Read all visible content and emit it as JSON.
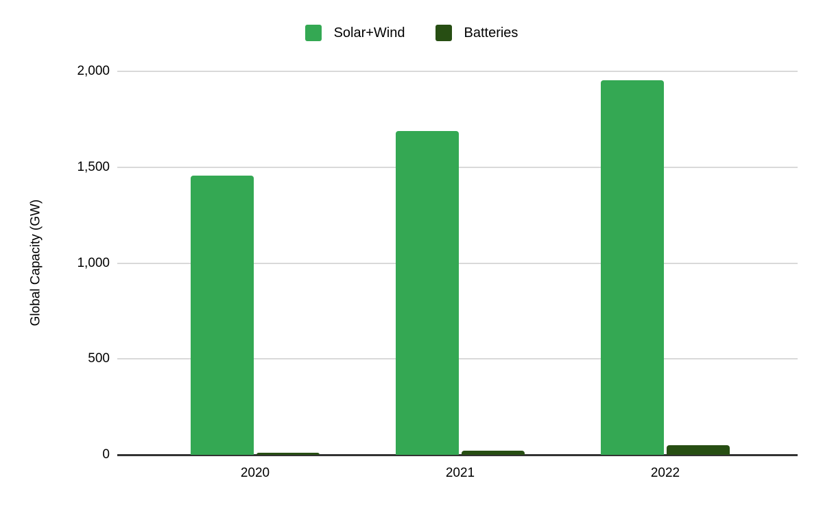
{
  "chart_data": {
    "type": "bar",
    "categories": [
      "2020",
      "2021",
      "2022"
    ],
    "series": [
      {
        "name": "Solar+Wind",
        "color": "#34a853",
        "values": [
          1455,
          1690,
          1955
        ]
      },
      {
        "name": "Batteries",
        "color": "#274e13",
        "values": [
          10,
          20,
          50
        ]
      }
    ],
    "title": "",
    "xlabel": "",
    "ylabel": "Global Capacity (GW)",
    "ylim": [
      0,
      2000
    ],
    "yticks": [
      0,
      500,
      1000,
      1500,
      2000
    ],
    "ytick_labels": [
      "0",
      "500",
      "1,000",
      "1,500",
      "2,000"
    ],
    "grid": "horizontal",
    "legend_position": "top-center",
    "colors": {
      "gridline": "#d9d9d9",
      "zero_line": "#333333",
      "text": "#000000",
      "background": "#ffffff"
    }
  }
}
